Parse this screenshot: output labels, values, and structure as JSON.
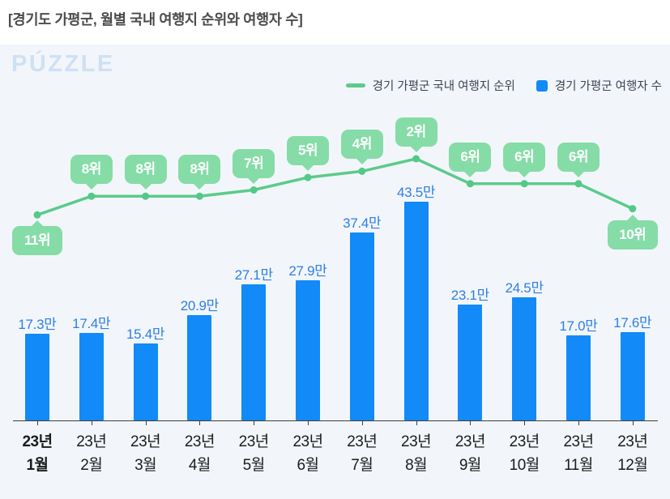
{
  "page": {
    "title": "[경기도 가평군, 월별 국내 여행지 순위와 여행자 수]"
  },
  "logo": {
    "text": "PÚZZLE"
  },
  "legend": {
    "line_label": "경기 가평군 국내 여행지 순위",
    "bar_label": "경기 가평군 여행자 수"
  },
  "colors": {
    "line_green": "#5bcb8b",
    "dot_green": "#53c988",
    "badge_green": "#85dca7",
    "bar_blue": "#128af7",
    "bar_label_blue": "#2e7ee6",
    "card_background": "#f2f6fa",
    "axis": "#3f3f3f"
  },
  "chart_data": {
    "type": "bar",
    "title": "경기도 가평군, 월별 국내 여행지 순위와 여행자 수",
    "categories": [
      "23년 1월",
      "23년 2월",
      "23년 3월",
      "23년 4월",
      "23년 5월",
      "23년 6월",
      "23년 7월",
      "23년 8월",
      "23년 9월",
      "23년 10월",
      "23년 11월",
      "23년 12월"
    ],
    "series": [
      {
        "name": "경기 가평군 국내 여행지 순위",
        "type": "line",
        "unit": "위",
        "values": [
          11,
          8,
          8,
          8,
          7,
          5,
          4,
          2,
          6,
          6,
          6,
          10
        ],
        "labels": [
          "11위",
          "8위",
          "8위",
          "8위",
          "7위",
          "5위",
          "4위",
          "2위",
          "6위",
          "6위",
          "6위",
          "10위"
        ],
        "note": "rank axis inverted: lower rank number plotted higher"
      },
      {
        "name": "경기 가평군 여행자 수",
        "type": "bar",
        "unit": "만",
        "values": [
          17.3,
          17.4,
          15.4,
          20.9,
          27.1,
          27.9,
          37.4,
          43.5,
          23.1,
          24.5,
          17.0,
          17.6
        ],
        "labels": [
          "17.3만",
          "17.4만",
          "15.4만",
          "20.9만",
          "27.1만",
          "27.9만",
          "37.4만",
          "43.5만",
          "23.1만",
          "24.5만",
          "17.0만",
          "17.6만"
        ]
      }
    ],
    "legend_position": "top-right",
    "grid": false,
    "xlabel": "",
    "ylabel": ""
  }
}
